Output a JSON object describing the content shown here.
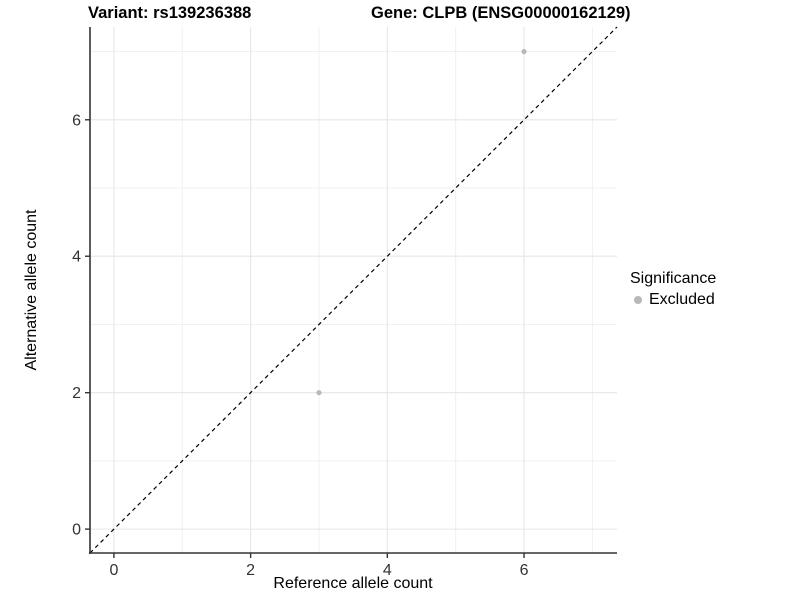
{
  "chart_data": {
    "type": "scatter",
    "title_left": "Variant: rs139236388",
    "title_right": "Gene: CLPB (ENSG00000162129)",
    "xlabel": "Reference allele count",
    "ylabel": "Alternative allele count",
    "xlim": [
      -0.35,
      7.36
    ],
    "ylim": [
      -0.35,
      7.36
    ],
    "x_ticks": [
      0,
      2,
      4,
      6
    ],
    "y_ticks": [
      0,
      2,
      4,
      6
    ],
    "x_minor_ticks": [
      1,
      3,
      5,
      7
    ],
    "y_minor_ticks": [
      1,
      3,
      5,
      7
    ],
    "grid": true,
    "identity_line": {
      "style": "dashed",
      "color": "#000000"
    },
    "series": [
      {
        "name": "Excluded",
        "color": "#b8b8b8",
        "points": [
          {
            "x": 3,
            "y": 2
          },
          {
            "x": 6,
            "y": 7
          }
        ]
      }
    ],
    "legend": {
      "title": "Significance",
      "position": "right",
      "items": [
        {
          "label": "Excluded",
          "color": "#b8b8b8"
        }
      ]
    },
    "colors": {
      "background": "#ffffff",
      "axis_line": "#333333",
      "tick_label": "#333333",
      "grid_major": "#e6e6e6",
      "grid_minor": "#f0f0f0",
      "point": "#b8b8b8"
    }
  }
}
